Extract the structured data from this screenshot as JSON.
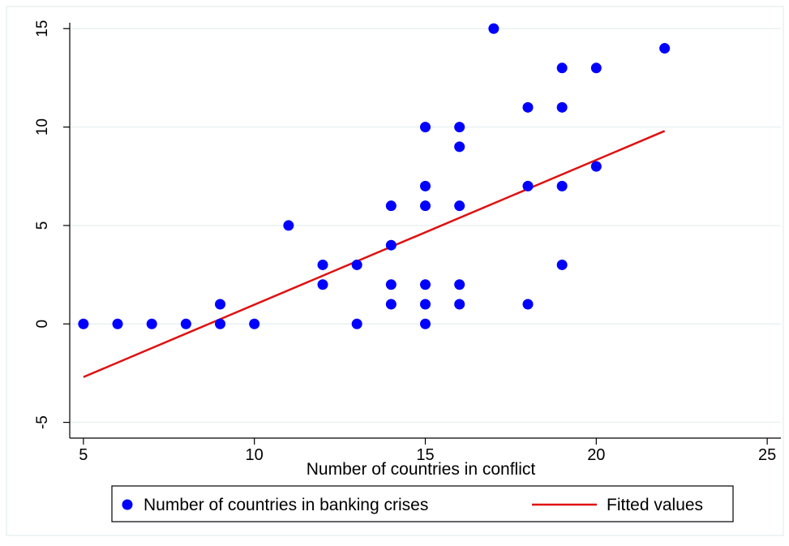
{
  "chart_data": {
    "type": "scatter",
    "xlabel": "Number of countries in conflict",
    "ylabel": "",
    "xlim": [
      4.6,
      25.4
    ],
    "ylim": [
      -5.8,
      15.3
    ],
    "xticks": [
      5,
      10,
      15,
      20,
      25
    ],
    "yticks": [
      -5,
      0,
      5,
      10,
      15
    ],
    "xtick_labels": [
      "5",
      "10",
      "15",
      "20",
      "25"
    ],
    "ytick_labels": [
      "-5",
      "0",
      "5",
      "10",
      "15"
    ],
    "grid": "horizontal",
    "legend_position": "bottom",
    "series": [
      {
        "name": "Number of countries in banking crises",
        "kind": "scatter",
        "color": "#0000ff",
        "points": [
          [
            5,
            0
          ],
          [
            6,
            0
          ],
          [
            7,
            0
          ],
          [
            8,
            0
          ],
          [
            9,
            0
          ],
          [
            9,
            1
          ],
          [
            10,
            0
          ],
          [
            11,
            5
          ],
          [
            12,
            3
          ],
          [
            12,
            2
          ],
          [
            13,
            3
          ],
          [
            13,
            0
          ],
          [
            14,
            6
          ],
          [
            14,
            4
          ],
          [
            14,
            2
          ],
          [
            14,
            1
          ],
          [
            15,
            10
          ],
          [
            15,
            7
          ],
          [
            15,
            6
          ],
          [
            15,
            2
          ],
          [
            15,
            1
          ],
          [
            15,
            0
          ],
          [
            16,
            10
          ],
          [
            16,
            9
          ],
          [
            16,
            6
          ],
          [
            16,
            2
          ],
          [
            16,
            1
          ],
          [
            17,
            15
          ],
          [
            18,
            11
          ],
          [
            18,
            7
          ],
          [
            18,
            1
          ],
          [
            19,
            13
          ],
          [
            19,
            11
          ],
          [
            19,
            7
          ],
          [
            19,
            3
          ],
          [
            20,
            13
          ],
          [
            20,
            8
          ],
          [
            22,
            14
          ]
        ]
      },
      {
        "name": "Fitted values",
        "kind": "line",
        "color": "#e01010",
        "points": [
          [
            5,
            -2.7
          ],
          [
            22,
            9.8
          ]
        ]
      }
    ]
  }
}
